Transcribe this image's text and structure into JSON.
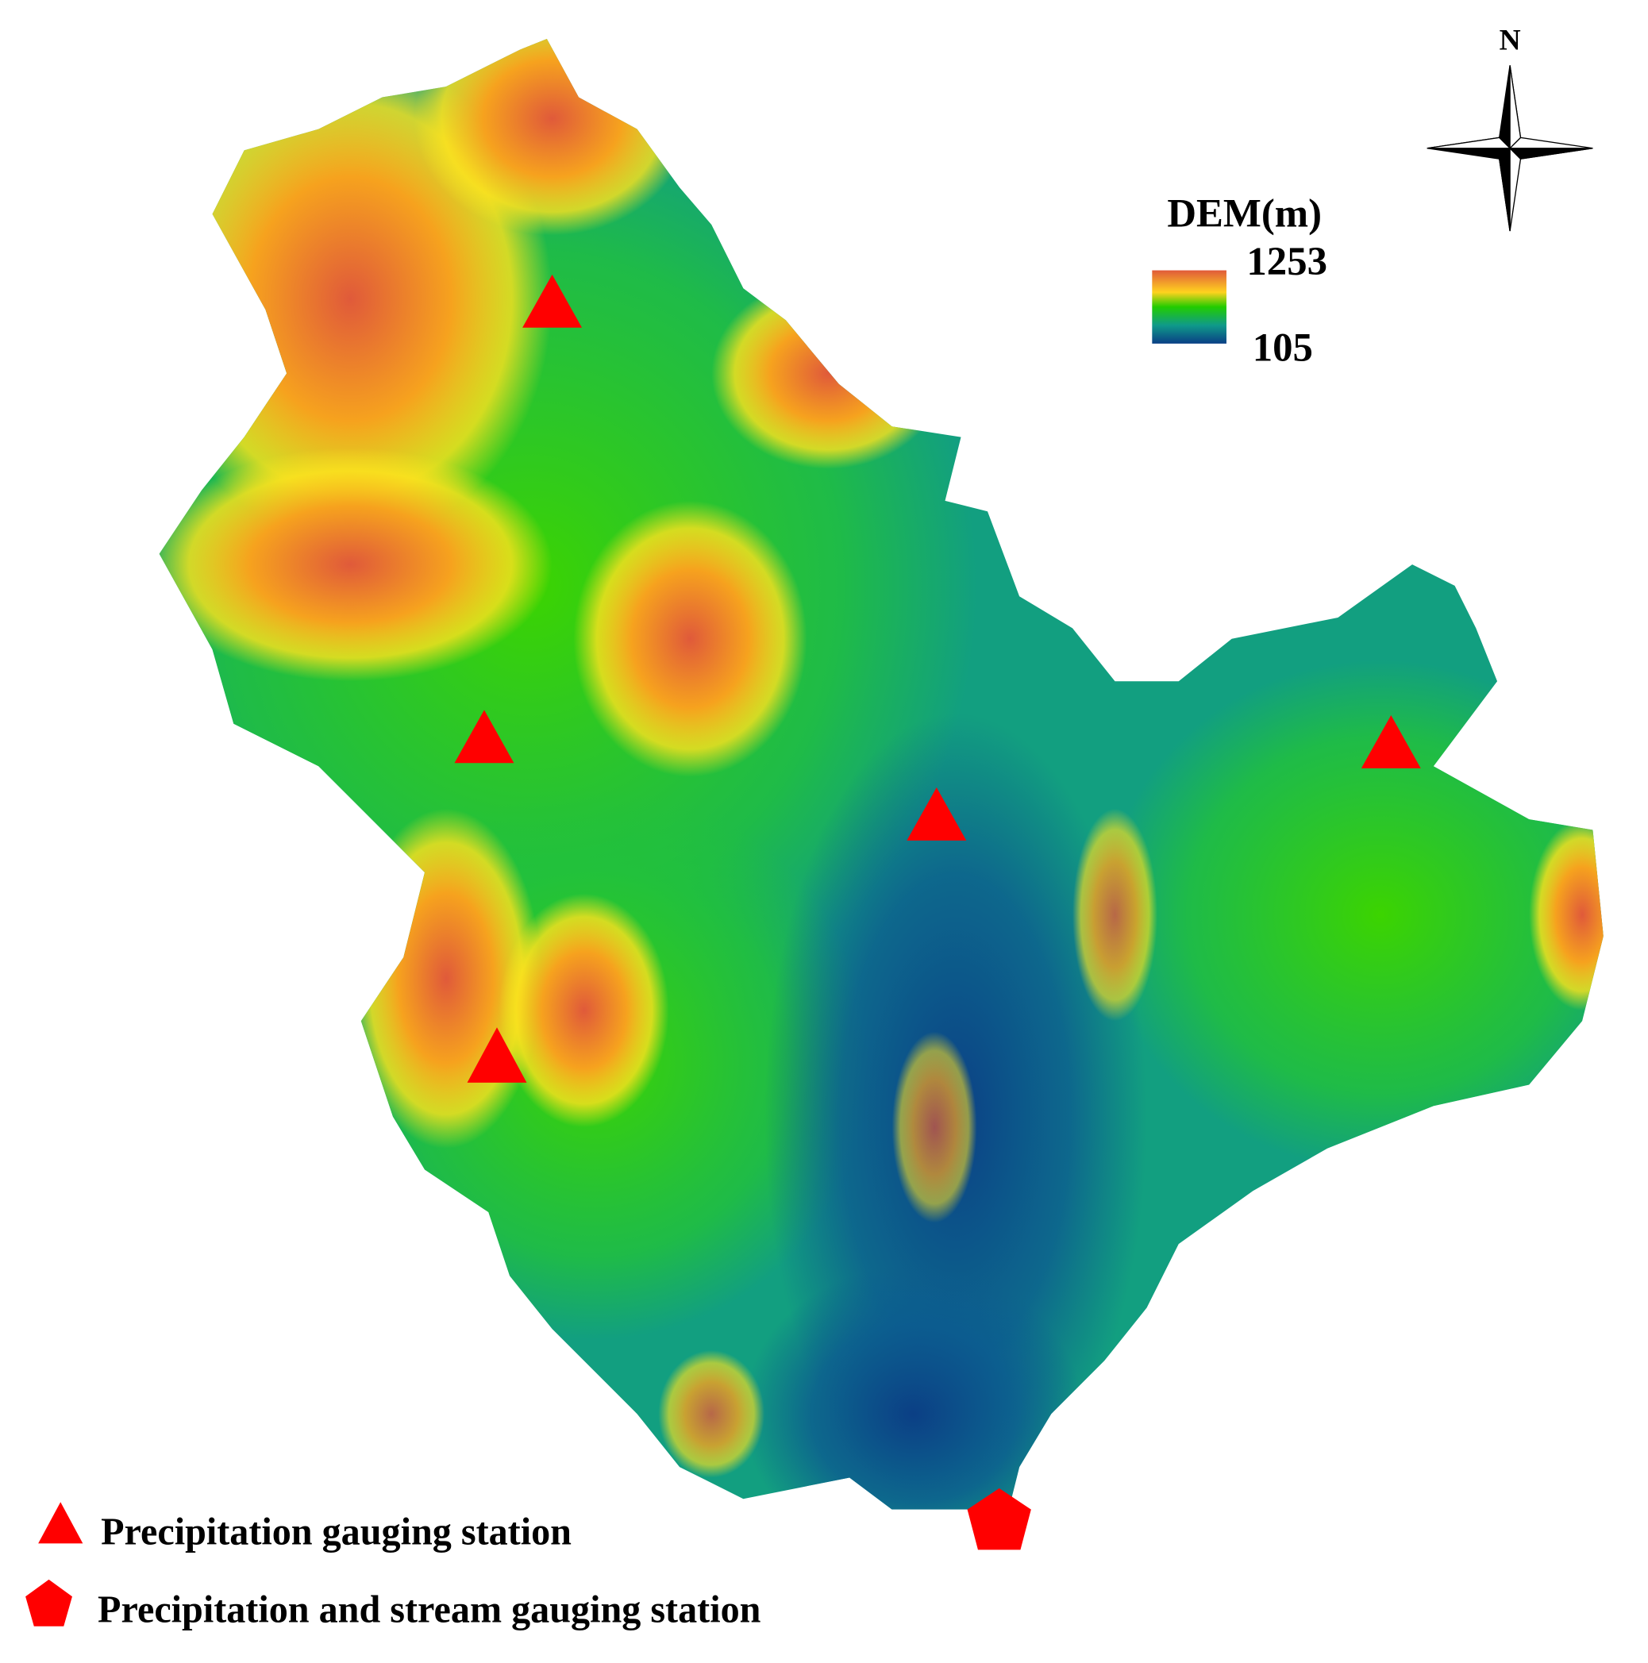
{
  "map": {
    "north_label": "N",
    "legend": {
      "title": "DEM(m)",
      "max_label": 1253,
      "min_label": 105
    },
    "stations": {
      "precipitation": "Precipitation gauging station",
      "combined": "Precipitation and stream gauging station"
    }
  }
}
